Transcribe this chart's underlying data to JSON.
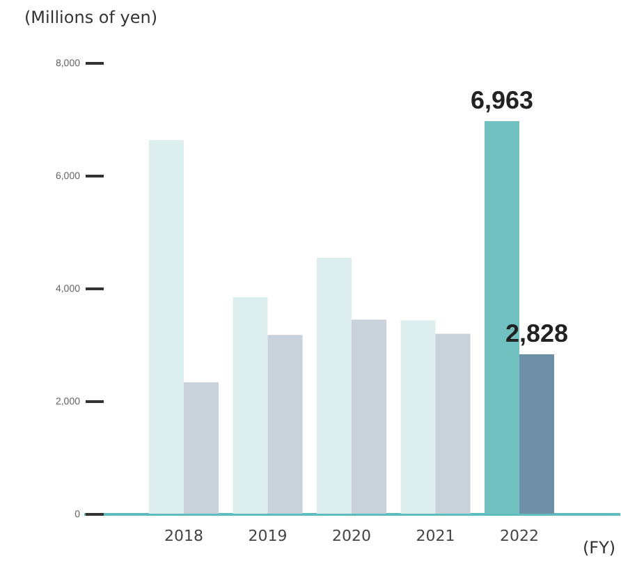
{
  "chart_data": {
    "type": "bar",
    "ylabel": "(Millions of yen)",
    "xlabel": "(FY)",
    "categories": [
      "2018",
      "2019",
      "2020",
      "2021",
      "2022"
    ],
    "series": [
      {
        "colors": [
          "#dcefee",
          "#dcefee",
          "#dcefee",
          "#dcefee",
          "#72c1c1"
        ],
        "values": [
          6630,
          3840,
          4540,
          3430,
          6963
        ],
        "value_labels": [
          null,
          null,
          null,
          null,
          "6,963"
        ]
      },
      {
        "colors": [
          "#c9d1db",
          "#c9d1db",
          "#c9d1db",
          "#c9d1db",
          "#6f8fa6"
        ],
        "values": [
          2330,
          3170,
          3440,
          3190,
          2828
        ],
        "value_labels": [
          null,
          null,
          null,
          null,
          "2,828"
        ]
      }
    ],
    "ylim": [
      0,
      8000
    ],
    "yticks": [
      {
        "value": 0,
        "label": "0"
      },
      {
        "value": 2000,
        "label": "2,000"
      },
      {
        "value": 4000,
        "label": "4,000"
      },
      {
        "value": 6000,
        "label": "6,000"
      },
      {
        "value": 8000,
        "label": "8,000"
      }
    ],
    "grid": false
  }
}
